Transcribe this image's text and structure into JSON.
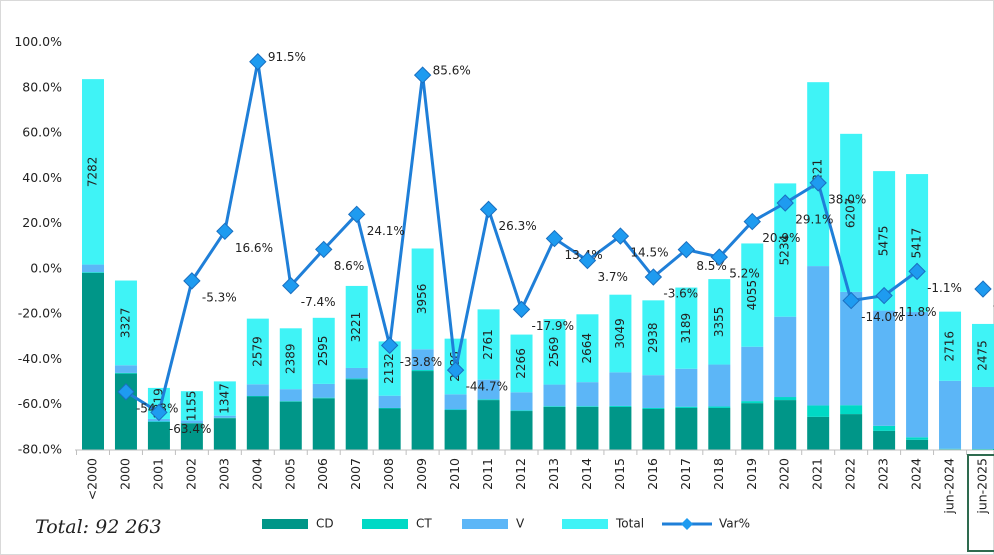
{
  "chart_data": {
    "type": "bar",
    "categories": [
      "<2000",
      "2000",
      "2001",
      "2002",
      "2003",
      "2004",
      "2005",
      "2006",
      "2007",
      "2008",
      "2009",
      "2010",
      "2011",
      "2012",
      "2013",
      "2014",
      "2015",
      "2016",
      "2017",
      "2018",
      "2019",
      "2020",
      "2021",
      "2022",
      "2023",
      "2024",
      "jun-2024",
      "jun-2025"
    ],
    "ylim": [
      -80,
      100
    ],
    "yticks": [
      {
        "value": 100,
        "label": "100.0%"
      },
      {
        "value": 80,
        "label": "80.0%"
      },
      {
        "value": 60,
        "label": "60.0%"
      },
      {
        "value": 40,
        "label": "40.0%"
      },
      {
        "value": 20,
        "label": "20.0%"
      },
      {
        "value": 0,
        "label": "0.0%"
      },
      {
        "value": -20,
        "label": "-20.0%"
      },
      {
        "value": -40,
        "label": "-40.0%"
      },
      {
        "value": -60,
        "label": "-60.0%"
      },
      {
        "value": -80,
        "label": "-80.0%"
      }
    ],
    "y2lim": [
      0,
      16000
    ],
    "grid": false,
    "legend": "bottom",
    "annotation": "Total: 92 263",
    "series": [
      {
        "name": "CD",
        "type": "bar",
        "axis": "y2",
        "color": "#009688",
        "values": [
          6950,
          3000,
          1100,
          1050,
          1250,
          2100,
          1900,
          2030,
          2780,
          1630,
          3100,
          1570,
          1960,
          1530,
          1690,
          1690,
          1690,
          1610,
          1650,
          1650,
          1840,
          1960,
          1300,
          1410,
          750,
          400,
          30,
          20
        ]
      },
      {
        "name": "CT",
        "type": "bar",
        "axis": "y2",
        "color": "#00d9c5",
        "values": [
          30,
          27,
          19,
          5,
          17,
          20,
          20,
          25,
          30,
          20,
          40,
          20,
          30,
          25,
          30,
          30,
          40,
          40,
          50,
          60,
          80,
          120,
          450,
          350,
          200,
          100,
          20,
          20
        ]
      },
      {
        "name": "V",
        "type": "bar",
        "axis": "y2",
        "color": "#5cb6f7",
        "values": [
          300,
          300,
          100,
          100,
          80,
          459,
          469,
          540,
          411,
          482,
          816,
          596,
          771,
          711,
          849,
          944,
          1319,
          1288,
          1489,
          1645,
          2135,
          3154,
          5471,
          4447,
          4525,
          4917,
          2666,
          2435
        ]
      },
      {
        "name": "Total",
        "type": "bar",
        "axis": "y2",
        "color": "#3ff3f6",
        "values": [
          7282,
          3327,
          1219,
          1155,
          1347,
          2579,
          2389,
          2595,
          3221,
          2132,
          3956,
          2186,
          2761,
          2266,
          2569,
          2664,
          3049,
          2938,
          3189,
          3355,
          4055,
          5234,
          7221,
          6207,
          5475,
          5417,
          2716,
          2475
        ]
      },
      {
        "name": "Var%",
        "type": "line",
        "color": "#1f7fd8",
        "values": [
          null,
          -54.3,
          -63.4,
          -5.3,
          16.6,
          91.5,
          -7.4,
          8.6,
          24.1,
          -33.8,
          85.6,
          -44.7,
          26.3,
          -17.9,
          13.4,
          3.7,
          14.5,
          -3.6,
          8.5,
          5.2,
          20.9,
          29.1,
          38.0,
          -14.0,
          -11.8,
          -1.1,
          null,
          -8.9
        ],
        "value_labels": [
          null,
          "-54.3%",
          "-63.4%",
          "-5.3%",
          "16.6%",
          "91.5%",
          "-7.4%",
          "8.6%",
          "24.1%",
          "-33.8%",
          "85.6%",
          "-44.7%",
          "26.3%",
          "-17.9%",
          "13.4%",
          "3.7%",
          "14.5%",
          "-3.6%",
          "8.5%",
          "5.2%",
          "20.9%",
          "29.1%",
          "38.0%",
          "-14.0%",
          "-11.8%",
          "-1.1%",
          null,
          "-8.9%"
        ]
      }
    ]
  }
}
